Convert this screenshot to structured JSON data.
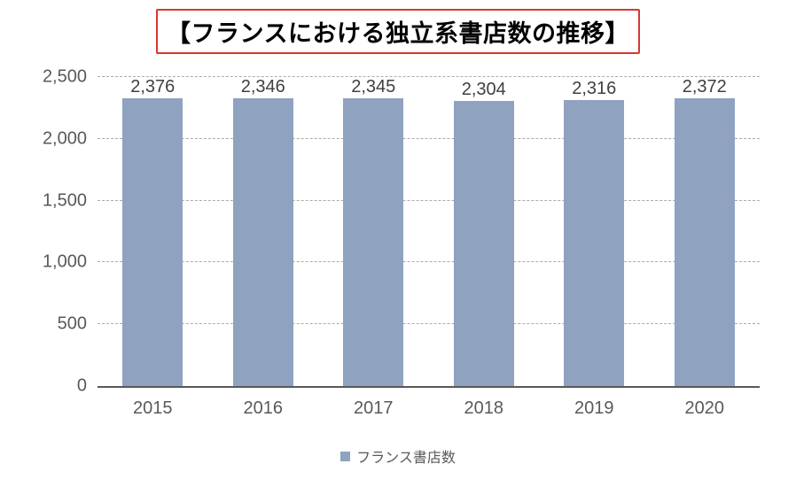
{
  "title": {
    "text": "【フランスにおける独立系書店数の推移】",
    "highlight_box_color": "#d8382e"
  },
  "chart_data": {
    "type": "bar",
    "title": "【フランスにおける独立系書店数の推移】",
    "categories": [
      "2015",
      "2016",
      "2017",
      "2018",
      "2019",
      "2020"
    ],
    "values": [
      2376,
      2346,
      2345,
      2304,
      2316,
      2372
    ],
    "value_labels": [
      "2,376",
      "2,346",
      "2,345",
      "2,304",
      "2,316",
      "2,372"
    ],
    "series_name": "フランス書店数",
    "xlabel": "",
    "ylabel": "",
    "ylim": [
      0,
      2500
    ],
    "yticks": [
      0,
      500,
      1000,
      1500,
      2000,
      2500
    ],
    "ytick_labels": [
      "0",
      "500",
      "1,000",
      "1,500",
      "2,000",
      "2,500"
    ],
    "grid": "horizontal-dashed",
    "legend_position": "bottom",
    "bar_color": "#8FA2BF",
    "axis_line_color": "#595959",
    "gridline_color": "#ababab",
    "label_color": "#404040",
    "tick_color": "#595959"
  },
  "legend": {
    "label": "フランス書店数",
    "swatch_color": "#8FA2BF"
  }
}
